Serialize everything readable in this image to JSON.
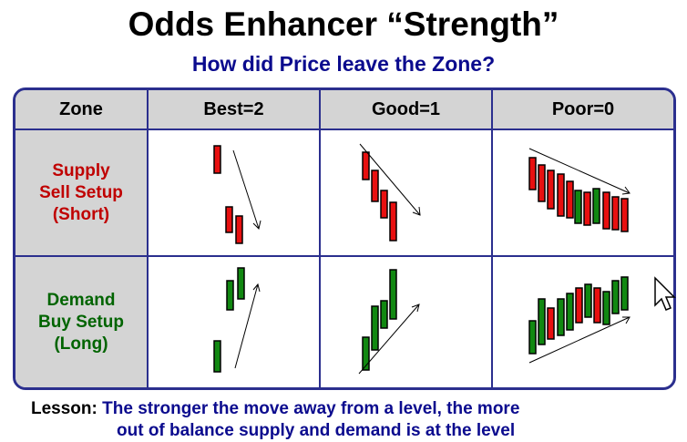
{
  "title": "Odds Enhancer “Strength”",
  "subtitle": "How did Price leave the Zone?",
  "table": {
    "headers": [
      "Zone",
      "Best=2",
      "Good=1",
      "Poor=0"
    ],
    "rows": [
      {
        "label_lines": [
          "Supply",
          "Sell Setup",
          "(Short)"
        ],
        "direction": "down"
      },
      {
        "label_lines": [
          "Demand",
          "Buy Setup",
          "(Long)"
        ],
        "direction": "up"
      }
    ]
  },
  "colors": {
    "supply": "#c00000",
    "demand": "#006400",
    "red_candle": "#e81010",
    "green_candle": "#118811",
    "border": "#2b2f8e"
  },
  "lesson": {
    "tag": "Lesson:",
    "line1": "The stronger the move away from a level, the more",
    "line2": "out of balance supply and demand is at the level"
  },
  "icons": [
    "arrow-icon",
    "mouse-pointer-icon"
  ]
}
